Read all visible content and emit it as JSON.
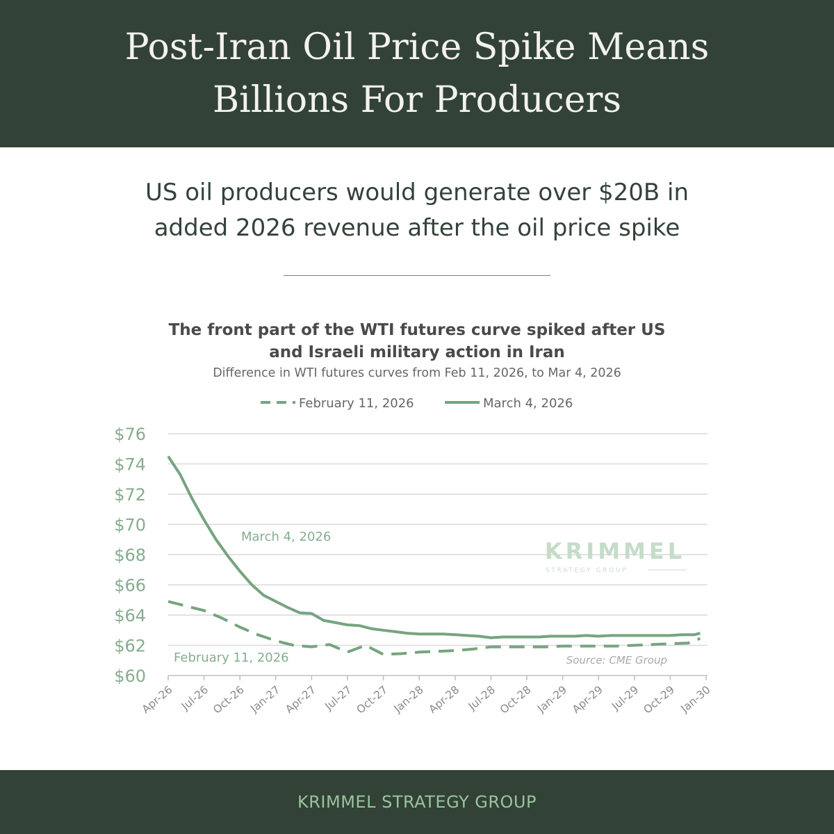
{
  "header": {
    "title": "Post-Iran Oil Price Spike Means Billions For Producers"
  },
  "subtitle": {
    "line1": "US oil producers would generate over $20B in",
    "line2": "added 2026 revenue after the oil price spike"
  },
  "footer": {
    "label": "KRIMMEL STRATEGY GROUP"
  },
  "watermark": {
    "name": "KRIMMEL",
    "tagline": "STRATEGY GROUP"
  },
  "chart_data": {
    "type": "line",
    "title_line1": "The front part of the WTI futures curve spiked after US",
    "title_line2": "and Israeli military action in Iran",
    "subtitle": "Difference in WTI futures curves from Feb 11, 2026, to Mar 4, 2026",
    "source": "Source: CME Group",
    "xlabel": "",
    "ylabel": "",
    "ylim": [
      60,
      76
    ],
    "yticks": [
      "$60",
      "$62",
      "$64",
      "$66",
      "$68",
      "$70",
      "$72",
      "$74",
      "$76"
    ],
    "ytick_values": [
      60,
      62,
      64,
      66,
      68,
      70,
      72,
      74,
      76
    ],
    "categories": [
      "Apr-26",
      "Jul-26",
      "Oct-26",
      "Jan-27",
      "Apr-27",
      "Jul-27",
      "Oct-27",
      "Jan-28",
      "Apr-28",
      "Jul-28",
      "Oct-28",
      "Jan-29",
      "Apr-29",
      "Jul-29",
      "Oct-29",
      "Jan-30"
    ],
    "x_months": [
      0,
      3,
      6,
      9,
      12,
      15,
      18,
      21,
      24,
      27,
      30,
      33,
      36,
      39,
      42,
      45
    ],
    "series": [
      {
        "name": "February 11, 2026",
        "annotation": "February 11, 2026",
        "style": "dashed",
        "color": "#76a47f",
        "x": [
          0,
          1.5,
          3,
          4.5,
          6,
          7.5,
          9,
          10.5,
          12,
          13.5,
          15,
          16.5,
          18,
          19.5,
          21,
          22.5,
          24,
          25.5,
          27,
          28.5,
          30,
          31.5,
          33,
          34.5,
          36,
          37.5,
          39,
          40.5,
          42,
          43.5,
          44.5
        ],
        "values": [
          64.9,
          64.6,
          64.3,
          63.8,
          63.2,
          62.7,
          62.3,
          62.0,
          61.9,
          62.05,
          61.55,
          62.0,
          61.4,
          61.45,
          61.55,
          61.6,
          61.65,
          61.75,
          61.9,
          61.9,
          61.9,
          61.9,
          61.95,
          61.95,
          61.95,
          61.95,
          62.0,
          62.05,
          62.1,
          62.15,
          62.45
        ]
      },
      {
        "name": "March 4, 2026",
        "annotation": "March 4, 2026",
        "style": "solid",
        "color": "#76a47f",
        "x": [
          0,
          1,
          2,
          3,
          4,
          5,
          6,
          7,
          8,
          9,
          10,
          11,
          12,
          13,
          14,
          15,
          16,
          17,
          18,
          19,
          20,
          21,
          22,
          23,
          24,
          25,
          26,
          27,
          28,
          29,
          30,
          31,
          32,
          33,
          34,
          35,
          36,
          37,
          38,
          39,
          40,
          41,
          42,
          43,
          44,
          44.5
        ],
        "values": [
          74.5,
          73.3,
          71.7,
          70.3,
          69.0,
          67.9,
          66.9,
          66.0,
          65.3,
          64.9,
          64.5,
          64.15,
          64.1,
          63.65,
          63.5,
          63.35,
          63.3,
          63.1,
          63.0,
          62.9,
          62.8,
          62.75,
          62.75,
          62.75,
          62.7,
          62.65,
          62.6,
          62.5,
          62.55,
          62.55,
          62.55,
          62.55,
          62.6,
          62.6,
          62.6,
          62.65,
          62.6,
          62.65,
          62.65,
          62.65,
          62.65,
          62.65,
          62.65,
          62.7,
          62.7,
          62.8
        ]
      }
    ],
    "legend": [
      "February 11, 2026",
      "March 4, 2026"
    ],
    "grid": true,
    "legend_position": "top-center"
  }
}
